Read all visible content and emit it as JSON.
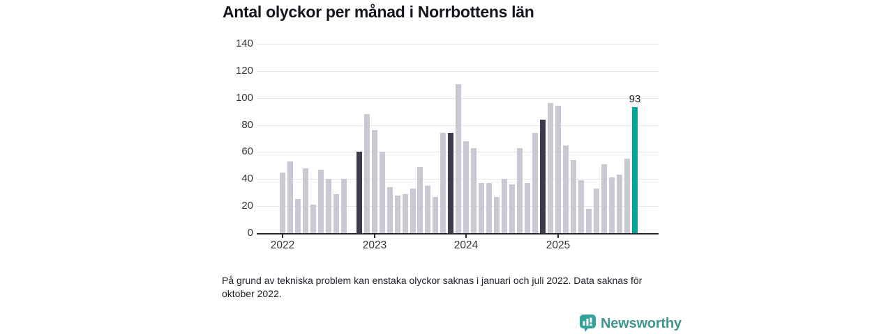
{
  "title": "Antal olyckor per månad i Norrbottens län",
  "footnote": {
    "line1": "På grund av tekniska problem kan enstaka olyckor saknas i januari och juli 2022. Data saknas för",
    "line2": "oktober 2022."
  },
  "logo": {
    "name": "Newsworthy"
  },
  "colors": {
    "bar": "#c9c8d3",
    "highlight": "#3b3b4d",
    "accent": "#05a398",
    "gridline": "#e6e5ec",
    "axis": "#27272f"
  },
  "chart_data": {
    "type": "bar",
    "title": "Antal olyckor per månad i Norrbottens län",
    "xlabel": "",
    "ylabel": "",
    "ylim": [
      0,
      140
    ],
    "yticks": [
      0,
      20,
      40,
      60,
      80,
      100,
      120,
      140
    ],
    "grid": true,
    "missing_months": [
      "2022-10"
    ],
    "xticks": [
      {
        "label": "2022",
        "month": "2022-01"
      },
      {
        "label": "2023",
        "month": "2023-01"
      },
      {
        "label": "2024",
        "month": "2024-01"
      },
      {
        "label": "2025",
        "month": "2025-01"
      }
    ],
    "annotation": {
      "label": "93",
      "month": "2025-11"
    },
    "points": [
      {
        "month": "2022-01",
        "value": 45,
        "highlight": "none"
      },
      {
        "month": "2022-02",
        "value": 53,
        "highlight": "none"
      },
      {
        "month": "2022-03",
        "value": 25,
        "highlight": "none"
      },
      {
        "month": "2022-04",
        "value": 48,
        "highlight": "none"
      },
      {
        "month": "2022-05",
        "value": 21,
        "highlight": "none"
      },
      {
        "month": "2022-06",
        "value": 47,
        "highlight": "none"
      },
      {
        "month": "2022-07",
        "value": 40,
        "highlight": "none"
      },
      {
        "month": "2022-08",
        "value": 29,
        "highlight": "none"
      },
      {
        "month": "2022-09",
        "value": 40,
        "highlight": "none"
      },
      {
        "month": "2022-11",
        "value": 60,
        "highlight": "dark"
      },
      {
        "month": "2022-12",
        "value": 88,
        "highlight": "none"
      },
      {
        "month": "2023-01",
        "value": 76,
        "highlight": "none"
      },
      {
        "month": "2023-02",
        "value": 60,
        "highlight": "none"
      },
      {
        "month": "2023-03",
        "value": 34,
        "highlight": "none"
      },
      {
        "month": "2023-04",
        "value": 28,
        "highlight": "none"
      },
      {
        "month": "2023-05",
        "value": 29,
        "highlight": "none"
      },
      {
        "month": "2023-06",
        "value": 33,
        "highlight": "none"
      },
      {
        "month": "2023-07",
        "value": 49,
        "highlight": "none"
      },
      {
        "month": "2023-08",
        "value": 35,
        "highlight": "none"
      },
      {
        "month": "2023-09",
        "value": 27,
        "highlight": "none"
      },
      {
        "month": "2023-10",
        "value": 74,
        "highlight": "none"
      },
      {
        "month": "2023-11",
        "value": 74,
        "highlight": "dark"
      },
      {
        "month": "2023-12",
        "value": 110,
        "highlight": "none"
      },
      {
        "month": "2024-01",
        "value": 68,
        "highlight": "none"
      },
      {
        "month": "2024-02",
        "value": 63,
        "highlight": "none"
      },
      {
        "month": "2024-03",
        "value": 37,
        "highlight": "none"
      },
      {
        "month": "2024-04",
        "value": 37,
        "highlight": "none"
      },
      {
        "month": "2024-05",
        "value": 27,
        "highlight": "none"
      },
      {
        "month": "2024-06",
        "value": 40,
        "highlight": "none"
      },
      {
        "month": "2024-07",
        "value": 36,
        "highlight": "none"
      },
      {
        "month": "2024-08",
        "value": 63,
        "highlight": "none"
      },
      {
        "month": "2024-09",
        "value": 37,
        "highlight": "none"
      },
      {
        "month": "2024-10",
        "value": 74,
        "highlight": "none"
      },
      {
        "month": "2024-11",
        "value": 84,
        "highlight": "dark"
      },
      {
        "month": "2024-12",
        "value": 96,
        "highlight": "none"
      },
      {
        "month": "2025-01",
        "value": 94,
        "highlight": "none"
      },
      {
        "month": "2025-02",
        "value": 65,
        "highlight": "none"
      },
      {
        "month": "2025-03",
        "value": 54,
        "highlight": "none"
      },
      {
        "month": "2025-04",
        "value": 39,
        "highlight": "none"
      },
      {
        "month": "2025-05",
        "value": 18,
        "highlight": "none"
      },
      {
        "month": "2025-06",
        "value": 33,
        "highlight": "none"
      },
      {
        "month": "2025-07",
        "value": 51,
        "highlight": "none"
      },
      {
        "month": "2025-08",
        "value": 41,
        "highlight": "none"
      },
      {
        "month": "2025-09",
        "value": 43,
        "highlight": "none"
      },
      {
        "month": "2025-10",
        "value": 55,
        "highlight": "none"
      },
      {
        "month": "2025-11",
        "value": 93,
        "highlight": "accent"
      }
    ]
  }
}
